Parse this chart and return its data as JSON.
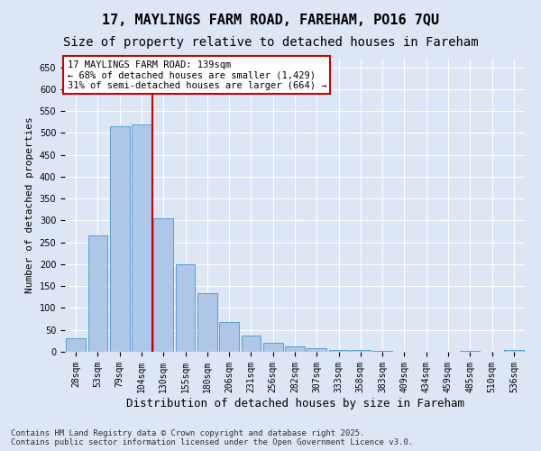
{
  "title": "17, MAYLINGS FARM ROAD, FAREHAM, PO16 7QU",
  "subtitle": "Size of property relative to detached houses in Fareham",
  "xlabel": "Distribution of detached houses by size in Fareham",
  "ylabel": "Number of detached properties",
  "categories": [
    "28sqm",
    "53sqm",
    "79sqm",
    "104sqm",
    "130sqm",
    "155sqm",
    "180sqm",
    "206sqm",
    "231sqm",
    "256sqm",
    "282sqm",
    "307sqm",
    "333sqm",
    "358sqm",
    "383sqm",
    "409sqm",
    "434sqm",
    "459sqm",
    "485sqm",
    "510sqm",
    "536sqm"
  ],
  "values": [
    30,
    265,
    515,
    520,
    305,
    200,
    133,
    68,
    38,
    20,
    13,
    8,
    5,
    4,
    3,
    1,
    0,
    0,
    2,
    0,
    4
  ],
  "bar_color": "#aec6e8",
  "bar_edge_color": "#5a9fd4",
  "vline_x_index": 4,
  "vline_color": "#cc0000",
  "annotation_text": "17 MAYLINGS FARM ROAD: 139sqm\n← 68% of detached houses are smaller (1,429)\n31% of semi-detached houses are larger (664) →",
  "annotation_box_color": "#ffffff",
  "annotation_box_edge_color": "#cc0000",
  "ylim": [
    0,
    670
  ],
  "yticks": [
    0,
    50,
    100,
    150,
    200,
    250,
    300,
    350,
    400,
    450,
    500,
    550,
    600,
    650
  ],
  "background_color": "#dce6f5",
  "footer_text": "Contains HM Land Registry data © Crown copyright and database right 2025.\nContains public sector information licensed under the Open Government Licence v3.0.",
  "title_fontsize": 11,
  "subtitle_fontsize": 10,
  "xlabel_fontsize": 9,
  "ylabel_fontsize": 8,
  "tick_fontsize": 7,
  "annotation_fontsize": 7.5,
  "footer_fontsize": 6.5
}
